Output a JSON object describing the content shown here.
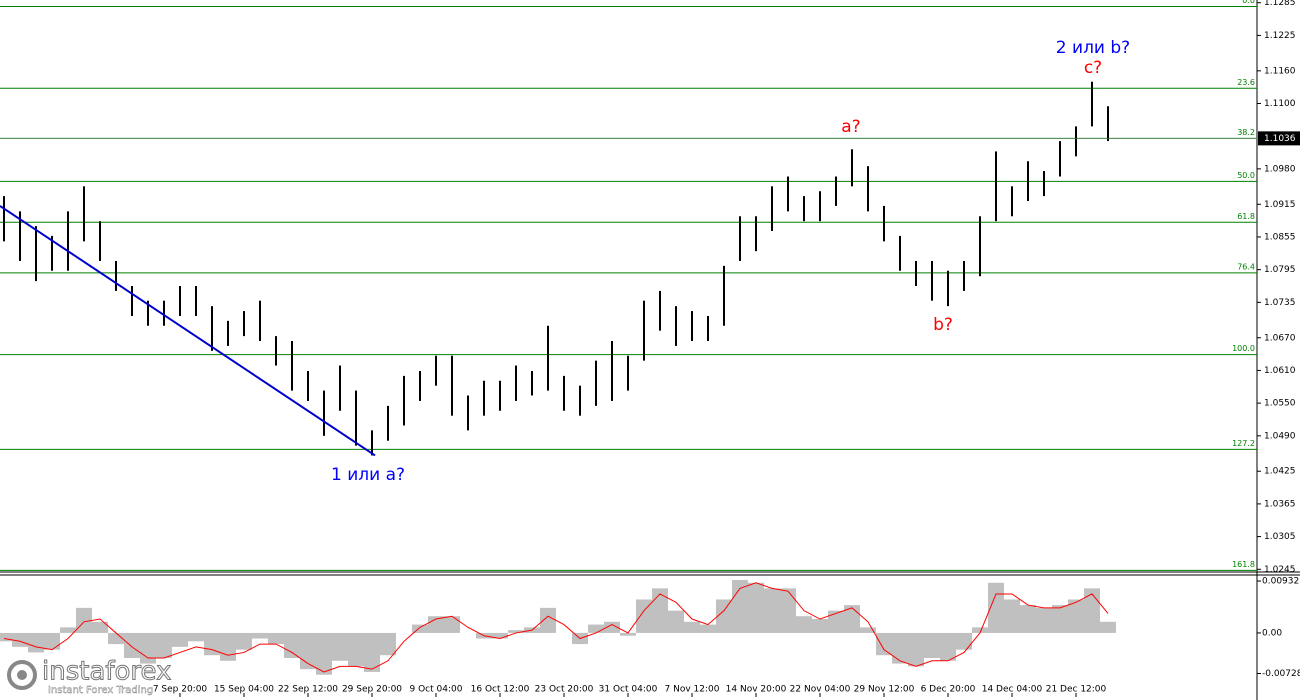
{
  "chart_data": {
    "type": "range-bars",
    "categories": [
      null,
      null,
      null,
      null,
      null,
      null,
      null,
      null,
      null,
      null,
      null,
      "7 Sep 20:00",
      null,
      null,
      null,
      "15 Sep 04:00",
      null,
      null,
      null,
      "22 Sep 12:00",
      null,
      null,
      null,
      "29 Sep 20:00",
      null,
      null,
      null,
      "9 Oct 04:00",
      null,
      null,
      null,
      "16 Oct 12:00",
      null,
      null,
      null,
      "23 Oct 20:00",
      null,
      null,
      null,
      "31 Oct 04:00",
      null,
      null,
      null,
      "7 Nov 12:00",
      null,
      null,
      null,
      "14 Nov 20:00",
      null,
      null,
      null,
      "22 Nov 04:00",
      null,
      null,
      null,
      "29 Nov 12:00",
      null,
      null,
      null,
      "6 Dec 20:00",
      null,
      null,
      null,
      "14 Dec 04:00",
      null,
      null,
      null,
      "21 Dec 12:00",
      null,
      null
    ],
    "high": [
      1.093,
      1.0902,
      1.0875,
      1.0857,
      1.0902,
      1.0948,
      1.0884,
      1.0811,
      1.0765,
      1.0738,
      1.0738,
      1.0765,
      1.0765,
      1.0728,
      1.0701,
      1.0719,
      1.0738,
      1.0673,
      1.0664,
      1.0609,
      1.0573,
      1.0619,
      1.0573,
      1.05,
      1.0545,
      1.06,
      1.0609,
      1.0637,
      1.0637,
      1.0564,
      1.0591,
      1.0591,
      1.0619,
      1.0609,
      1.0692,
      1.06,
      1.0582,
      1.0628,
      1.0664,
      1.0637,
      1.0738,
      1.0756,
      1.0728,
      1.0719,
      1.071,
      1.0802,
      1.0893,
      1.0893,
      1.0948,
      1.0966,
      1.093,
      1.0939,
      1.0966,
      1.1016,
      1.0985,
      1.0912,
      1.0857,
      1.0811,
      1.0811,
      1.0793,
      1.0811,
      1.0893,
      1.1012,
      1.0948,
      1.0994,
      1.0976,
      1.1031,
      1.1058,
      1.114,
      1.1095
    ],
    "low": [
      1.0847,
      1.0811,
      1.0774,
      1.0793,
      1.0793,
      1.0847,
      1.0811,
      1.0756,
      1.071,
      1.0692,
      1.0692,
      1.071,
      1.071,
      1.0646,
      1.0655,
      1.0673,
      1.0664,
      1.0619,
      1.0573,
      1.0554,
      1.049,
      1.0536,
      1.0472,
      1.0454,
      1.0481,
      1.0509,
      1.0554,
      1.0582,
      1.0527,
      1.05,
      1.0527,
      1.0536,
      1.0554,
      1.0564,
      1.0573,
      1.0536,
      1.0527,
      1.0545,
      1.0554,
      1.0573,
      1.0628,
      1.0683,
      1.0655,
      1.0664,
      1.0664,
      1.0692,
      1.0811,
      1.0829,
      1.0866,
      1.0902,
      1.0884,
      1.0884,
      1.0912,
      1.0948,
      1.0902,
      1.0847,
      1.0793,
      1.0765,
      1.0738,
      1.0728,
      1.0756,
      1.0783,
      1.0884,
      1.0893,
      1.0921,
      1.093,
      1.0966,
      1.1003,
      1.1058,
      1.1031
    ],
    "color": "#000000",
    "ylim": [
      1.024,
      1.129
    ],
    "yticks": [
      1.1285,
      1.1225,
      {
        "value": 1.116,
        "label": "1.1160"
      },
      {
        "value": 1.11,
        "label": "1.1100"
      },
      {
        "value": 1.098,
        "label": "1.0980"
      },
      1.0915,
      1.0855,
      1.0795,
      1.0735,
      {
        "value": 1.067,
        "label": "1.0670"
      },
      {
        "value": 1.061,
        "label": "1.0610"
      },
      {
        "value": 1.055,
        "label": "1.0550"
      },
      {
        "value": 1.049,
        "label": "1.0490"
      },
      1.0425,
      1.0365,
      1.0305,
      1.0245
    ],
    "last_price": 1.1036,
    "fib_color": "#008000",
    "fib_levels": [
      {
        "label": "0.0",
        "price": 1.1278
      },
      {
        "label": "23.6",
        "price": 1.1128
      },
      {
        "label": "38.2",
        "price": 1.1036
      },
      {
        "label": "50.0",
        "price": 1.0957
      },
      {
        "label": "61.8",
        "price": 1.0882
      },
      {
        "label": "76.4",
        "price": 1.0789
      },
      {
        "label": "100.0",
        "price": 1.0639
      },
      {
        "label": "127.2",
        "price": 1.0465
      },
      {
        "label": "161.8",
        "price": 1.0243
      }
    ],
    "trendline": {
      "from": 1.0912,
      "to": 1.0454,
      "color": "#0000cd"
    },
    "annotations": [
      {
        "text": "2 или b?",
        "color": "#0000ff"
      },
      {
        "text": "c?",
        "color": "#ff0000"
      },
      {
        "text": "a?",
        "color": "#ff0000"
      },
      {
        "text": "b?",
        "color": "#ff0000"
      },
      {
        "text": "1 или a?",
        "color": "#0000ff"
      }
    ],
    "indicator": {
      "type": "histogram",
      "values": [
        -0.0015,
        -0.0025,
        -0.0035,
        -0.003,
        0.001,
        0.0045,
        0.002,
        -0.002,
        -0.0045,
        -0.0055,
        -0.0045,
        -0.0025,
        -0.0015,
        -0.004,
        -0.005,
        -0.003,
        -0.001,
        -0.002,
        -0.0045,
        -0.0065,
        -0.0075,
        -0.005,
        -0.006,
        -0.007,
        -0.004,
        0,
        0.0015,
        0.003,
        0.003,
        0,
        -0.001,
        -0.001,
        0.0005,
        0.001,
        0.0045,
        0,
        -0.002,
        0.0015,
        0.002,
        -0.0005,
        0.006,
        0.008,
        0.004,
        0.002,
        0.0015,
        0.006,
        0.0095,
        0.009,
        0.008,
        0.008,
        0.003,
        0.0025,
        0.004,
        0.005,
        0.001,
        -0.004,
        -0.0055,
        -0.006,
        -0.0045,
        -0.005,
        -0.003,
        0.001,
        0.009,
        0.006,
        0.005,
        0.0045,
        0.005,
        0.006,
        0.008,
        0.002
      ],
      "color": "#c0c0c0",
      "signal": {
        "values": [
          -0.001,
          -0.0015,
          -0.0025,
          -0.003,
          -0.001,
          0.002,
          0.0025,
          0,
          -0.0025,
          -0.0045,
          -0.0045,
          -0.0035,
          -0.0025,
          -0.003,
          -0.004,
          -0.0035,
          -0.002,
          -0.002,
          -0.0035,
          -0.0055,
          -0.007,
          -0.006,
          -0.006,
          -0.0065,
          -0.005,
          -0.0015,
          0.001,
          0.0025,
          0.003,
          0.001,
          -0.0005,
          -0.001,
          0,
          0.0005,
          0.003,
          0.0015,
          -0.001,
          0,
          0.0015,
          0,
          0.004,
          0.007,
          0.0055,
          0.0025,
          0.0015,
          0.004,
          0.008,
          0.009,
          0.008,
          0.0075,
          0.004,
          0.0025,
          0.0035,
          0.0045,
          0.002,
          -0.003,
          -0.005,
          -0.006,
          -0.005,
          -0.005,
          -0.0035,
          0,
          0.007,
          0.007,
          0.005,
          0.0045,
          0.0045,
          0.0055,
          0.007,
          0.0035
        ],
        "color": "#ff0000"
      },
      "y2lim": [
        -0.0115,
        0.0104
      ],
      "y2ticks": [
        0.00932,
        {
          "value": 0,
          "label": "0.00"
        },
        -0.00728
      ]
    }
  },
  "branding": {
    "name": "instaforex",
    "tagline": "Instant Forex Trading"
  }
}
